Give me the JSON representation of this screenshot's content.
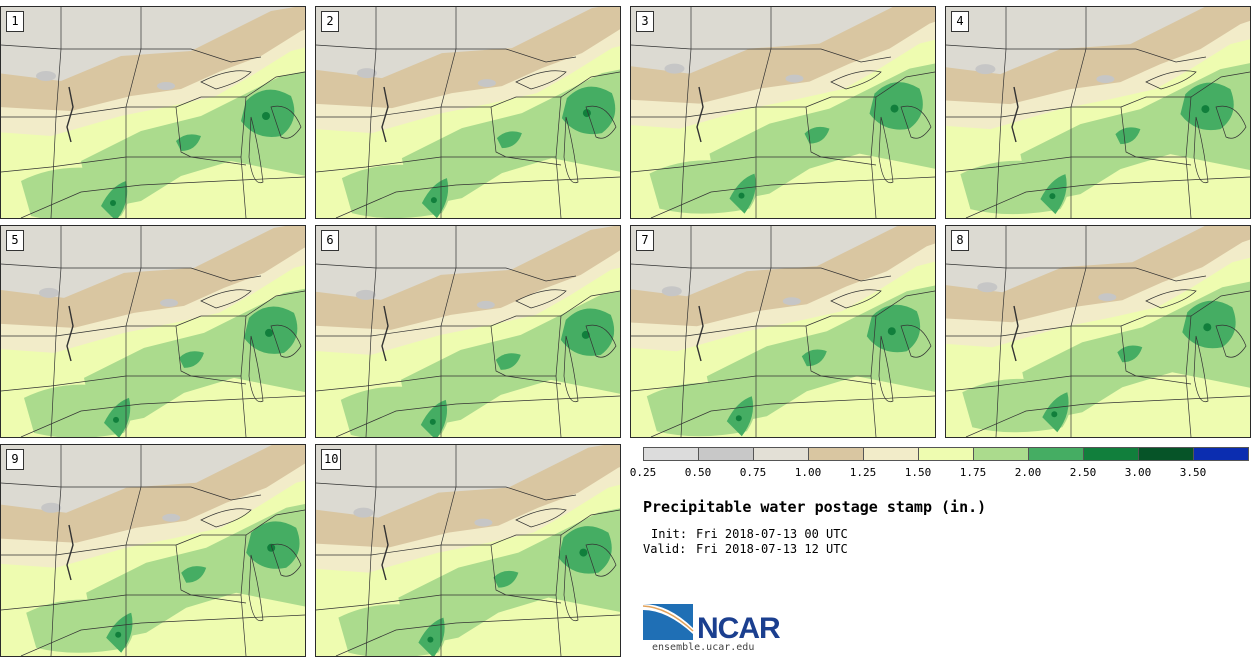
{
  "figure": {
    "title": "Precipitable water postage stamp (in.)",
    "init_label": "Init:",
    "init_value": "Fri 2018-07-13 00 UTC",
    "valid_label": "Valid:",
    "valid_value": "Fri 2018-07-13 12 UTC"
  },
  "panels": [
    {
      "label": "1"
    },
    {
      "label": "2"
    },
    {
      "label": "3"
    },
    {
      "label": "4"
    },
    {
      "label": "5"
    },
    {
      "label": "6"
    },
    {
      "label": "7"
    },
    {
      "label": "8"
    },
    {
      "label": "9"
    },
    {
      "label": "10"
    }
  ],
  "legend": {
    "ticks": [
      "0.25",
      "0.50",
      "0.75",
      "1.00",
      "1.25",
      "1.50",
      "1.75",
      "2.00",
      "2.50",
      "3.00",
      "3.50"
    ],
    "colors": [
      "#dcdcdc",
      "#c8c8c8",
      "#e3e0d6",
      "#d9c6a1",
      "#f2ecc9",
      "#eefcb0",
      "#abdb8d",
      "#45ad63",
      "#117f3c",
      "#065428",
      "#0b2db0"
    ]
  },
  "logo": {
    "name": "NCAR",
    "url": "ensemble.ucar.edu"
  }
}
